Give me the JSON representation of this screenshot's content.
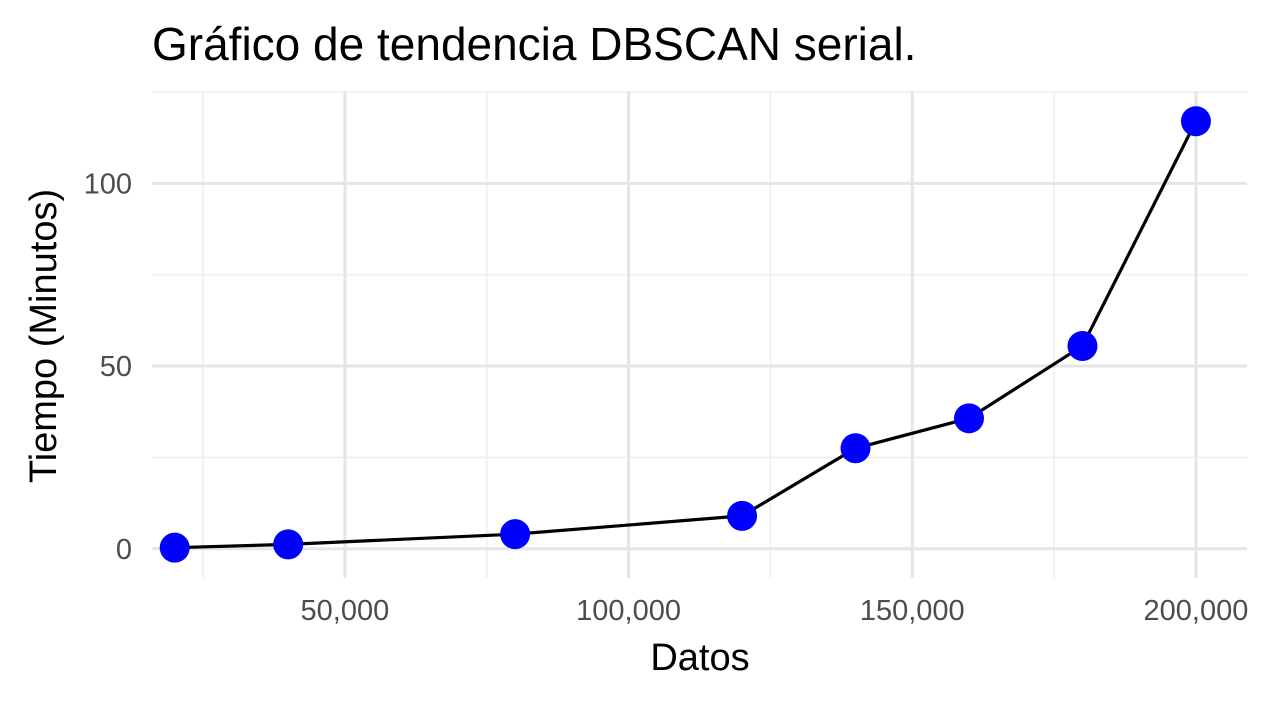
{
  "chart_data": {
    "type": "line",
    "title": "Gráfico de tendencia DBSCAN serial.",
    "xlabel": "Datos",
    "ylabel": "Tiempo (Minutos)",
    "xlim": [
      16000,
      209000
    ],
    "ylim": [
      -8,
      125
    ],
    "x_major_ticks": [
      50000,
      100000,
      150000,
      200000
    ],
    "x_tick_labels": [
      "50,000",
      "100,000",
      "150,000",
      "200,000"
    ],
    "x_minor_ticks": [
      25000,
      75000,
      125000,
      175000
    ],
    "y_major_ticks": [
      0,
      50,
      100
    ],
    "y_tick_labels": [
      "0",
      "50",
      "100"
    ],
    "y_minor_ticks": [
      25,
      75,
      125
    ],
    "grid": true,
    "legend": "none",
    "line_color": "#000000",
    "point_color": "#0000ff",
    "series": [
      {
        "x": [
          20000,
          40000,
          80000,
          120000,
          140000,
          160000,
          180000,
          200000
        ],
        "y": [
          0.3,
          1.2,
          4.0,
          9.0,
          27.5,
          35.7,
          55.5,
          117.0
        ]
      }
    ]
  }
}
